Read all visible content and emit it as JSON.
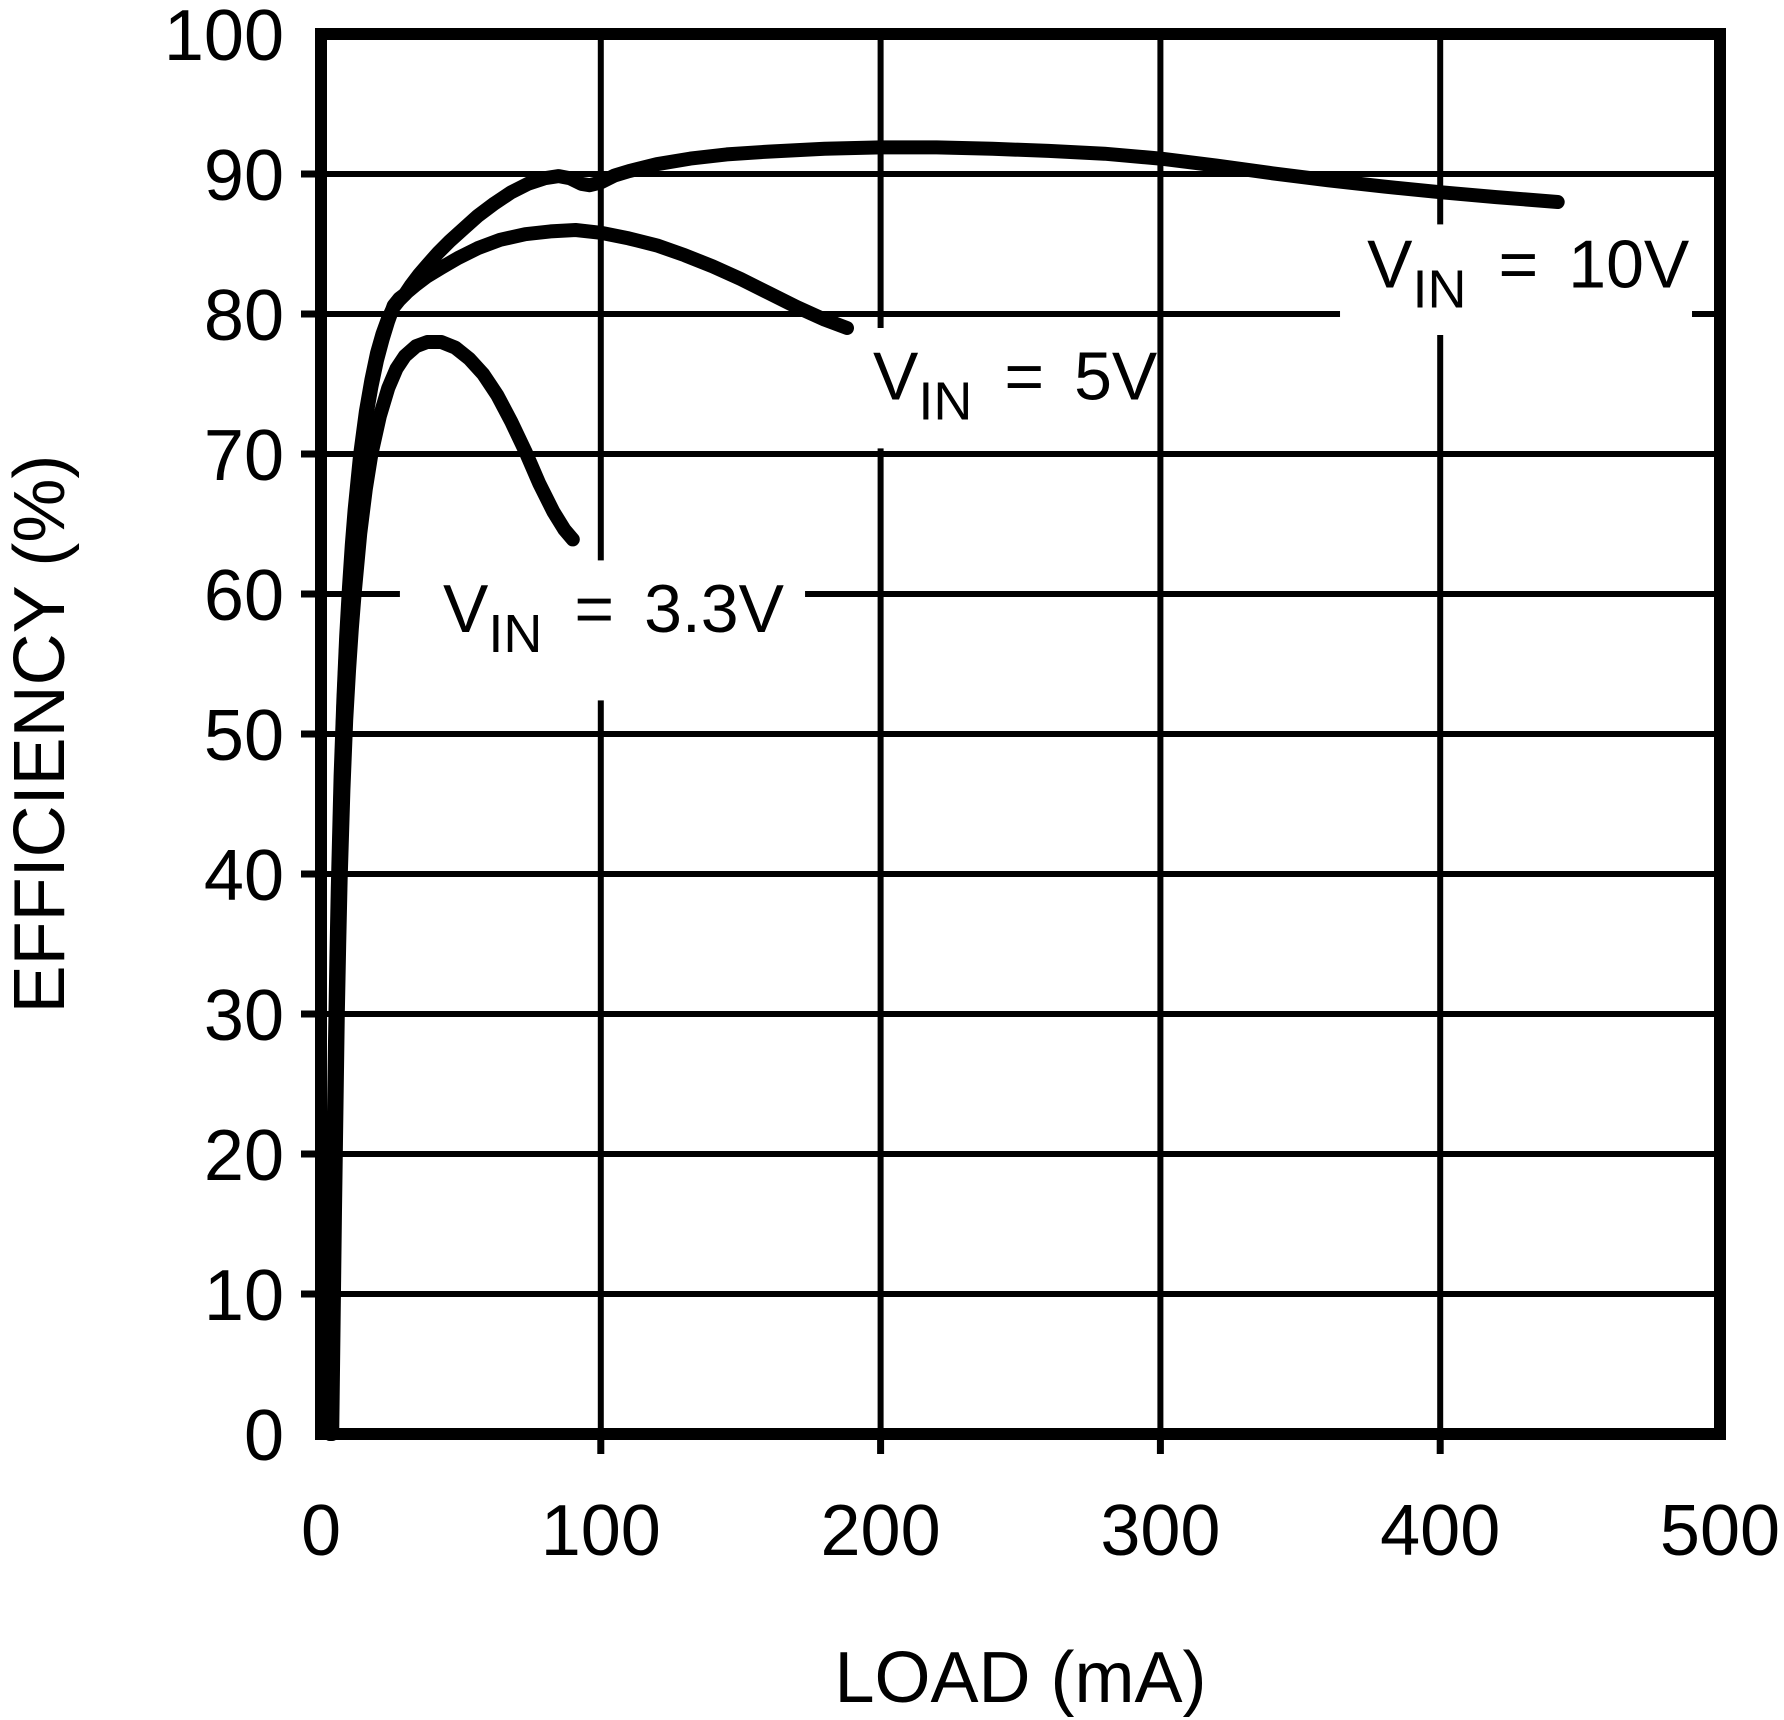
{
  "page": {
    "background": "#ffffff",
    "ink": "#000000"
  },
  "chart_data": {
    "type": "line",
    "title": "",
    "xlabel": "LOAD (mA)",
    "ylabel": "EFFICIENCY (%)",
    "xlim": [
      0,
      500
    ],
    "ylim": [
      0,
      100
    ],
    "xticks": [
      0,
      100,
      200,
      300,
      400,
      500
    ],
    "yticks": [
      0,
      10,
      20,
      30,
      40,
      50,
      60,
      70,
      80,
      90,
      100
    ],
    "grid": true,
    "legend_position": "inline-annotations",
    "series": [
      {
        "id": "vin-3v3",
        "name": "VIN = 3.3V",
        "points": [
          [
            4,
            0
          ],
          [
            4.5,
            8
          ],
          [
            5,
            16
          ],
          [
            5.5,
            23
          ],
          [
            6,
            30
          ],
          [
            6.5,
            35
          ],
          [
            7,
            39.5
          ],
          [
            8,
            46
          ],
          [
            9,
            51
          ],
          [
            10,
            54.5
          ],
          [
            11,
            57.5
          ],
          [
            12,
            60
          ],
          [
            14,
            64.3
          ],
          [
            16,
            67.5
          ],
          [
            18,
            70
          ],
          [
            21,
            72.7
          ],
          [
            24,
            74.7
          ],
          [
            27,
            76.1
          ],
          [
            30,
            77
          ],
          [
            34,
            77.7
          ],
          [
            38,
            78
          ],
          [
            43,
            78
          ],
          [
            48,
            77.6
          ],
          [
            53,
            76.8
          ],
          [
            58,
            75.7
          ],
          [
            63,
            74.2
          ],
          [
            68,
            72.3
          ],
          [
            73,
            70.2
          ],
          [
            78,
            67.9
          ],
          [
            83,
            65.9
          ],
          [
            87,
            64.6
          ],
          [
            90,
            63.9
          ]
        ]
      },
      {
        "id": "vin-5v",
        "name": "VIN = 5V",
        "points": [
          [
            3.2,
            0
          ],
          [
            3.6,
            6
          ],
          [
            4,
            13
          ],
          [
            4.5,
            21
          ],
          [
            5,
            28
          ],
          [
            5.5,
            34
          ],
          [
            6,
            39
          ],
          [
            7,
            47
          ],
          [
            8,
            52.5
          ],
          [
            9,
            57
          ],
          [
            10,
            60.5
          ],
          [
            11,
            63.5
          ],
          [
            12,
            66
          ],
          [
            14,
            70
          ],
          [
            16,
            73
          ],
          [
            18,
            75.3
          ],
          [
            20,
            77.2
          ],
          [
            22,
            78.6
          ],
          [
            24,
            79.7
          ],
          [
            26,
            80.5
          ],
          [
            28,
            81
          ],
          [
            31,
            81.6
          ],
          [
            34,
            82.1
          ],
          [
            38,
            82.7
          ],
          [
            43,
            83.3
          ],
          [
            49,
            84
          ],
          [
            56,
            84.7
          ],
          [
            64,
            85.3
          ],
          [
            73,
            85.7
          ],
          [
            82,
            85.9
          ],
          [
            91,
            86
          ],
          [
            100,
            85.8
          ],
          [
            110,
            85.4
          ],
          [
            120,
            84.9
          ],
          [
            130,
            84.2
          ],
          [
            140,
            83.4
          ],
          [
            150,
            82.5
          ],
          [
            160,
            81.5
          ],
          [
            170,
            80.5
          ],
          [
            180,
            79.6
          ],
          [
            188,
            79
          ]
        ]
      },
      {
        "id": "vin-10v",
        "name": "VIN = 10V",
        "points": [
          [
            3.5,
            0
          ],
          [
            4,
            6
          ],
          [
            4.5,
            14
          ],
          [
            5,
            22
          ],
          [
            5.5,
            30
          ],
          [
            6,
            37
          ],
          [
            6.5,
            42
          ],
          [
            7,
            46
          ],
          [
            8,
            52
          ],
          [
            9,
            56.5
          ],
          [
            10,
            60
          ],
          [
            11,
            63
          ],
          [
            12,
            65.5
          ],
          [
            14,
            69.5
          ],
          [
            16,
            72.5
          ],
          [
            18,
            74.8
          ],
          [
            20,
            76.7
          ],
          [
            22,
            78.2
          ],
          [
            24,
            79.5
          ],
          [
            26,
            80.6
          ],
          [
            28,
            81.1
          ],
          [
            30,
            81.4
          ],
          [
            32,
            82
          ],
          [
            35,
            82.8
          ],
          [
            38,
            83.5
          ],
          [
            42,
            84.4
          ],
          [
            46,
            85.2
          ],
          [
            51,
            86.1
          ],
          [
            56,
            87
          ],
          [
            62,
            87.9
          ],
          [
            68,
            88.7
          ],
          [
            74,
            89.3
          ],
          [
            80,
            89.7
          ],
          [
            85,
            89.85
          ],
          [
            89,
            89.7
          ],
          [
            93,
            89.3
          ],
          [
            96,
            89.2
          ],
          [
            100,
            89.4
          ],
          [
            105,
            89.9
          ],
          [
            110,
            90.2
          ],
          [
            120,
            90.7
          ],
          [
            132,
            91.1
          ],
          [
            145,
            91.4
          ],
          [
            160,
            91.6
          ],
          [
            180,
            91.8
          ],
          [
            200,
            91.9
          ],
          [
            220,
            91.9
          ],
          [
            240,
            91.8
          ],
          [
            260,
            91.65
          ],
          [
            280,
            91.45
          ],
          [
            300,
            91.1
          ],
          [
            320,
            90.6
          ],
          [
            340,
            90.05
          ],
          [
            360,
            89.55
          ],
          [
            380,
            89.1
          ],
          [
            400,
            88.7
          ],
          [
            420,
            88.35
          ],
          [
            442,
            88
          ]
        ]
      }
    ],
    "annotations": [
      {
        "series_id": "vin-3v3",
        "base": "V",
        "sub": "IN",
        "eq": "=",
        "value": "3.3V",
        "x_ma": 43.6,
        "y_pct": 57.3,
        "mask_x": [
          28.2,
          173.0
        ],
        "mask_y": [
          52.4,
          62.4
        ]
      },
      {
        "series_id": "vin-5v",
        "base": "V",
        "sub": "IN",
        "eq": "=",
        "value": "5V",
        "x_ma": 197.3,
        "y_pct": 73.9,
        "mask_x": [
          188.3,
          296.3
        ],
        "mask_y": [
          70.4,
          79.0
        ]
      },
      {
        "series_id": "vin-10v",
        "base": "V",
        "sub": "IN",
        "eq": "=",
        "value": "10V",
        "x_ma": 373.9,
        "y_pct": 81.9,
        "mask_x": [
          364.2,
          490.0
        ],
        "mask_y": [
          78.5,
          86.4
        ]
      }
    ]
  }
}
